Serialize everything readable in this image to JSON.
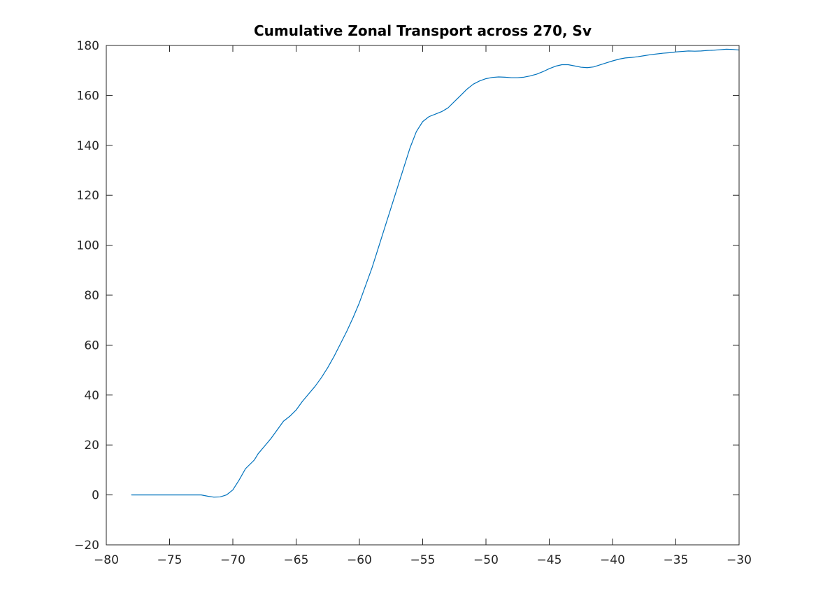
{
  "chart_data": {
    "type": "line",
    "title": "Cumulative Zonal Transport across 270, Sv",
    "xlabel": "",
    "ylabel": "",
    "xlim": [
      -80,
      -30
    ],
    "ylim": [
      -20,
      180
    ],
    "xticks": [
      -80,
      -75,
      -70,
      -65,
      -60,
      -55,
      -50,
      -45,
      -40,
      -35,
      -30
    ],
    "yticks": [
      -20,
      0,
      20,
      40,
      60,
      80,
      100,
      120,
      140,
      160,
      180
    ],
    "grid": false,
    "colors": {
      "series": "#0072bd",
      "axes": "#262626"
    },
    "series": [
      {
        "values": [
          [
            -78,
            0
          ],
          [
            -75,
            0
          ],
          [
            -73,
            0
          ],
          [
            -72.5,
            0
          ],
          [
            -72,
            -0.5
          ],
          [
            -71.5,
            -0.9
          ],
          [
            -71,
            -0.8
          ],
          [
            -70.5,
            0
          ],
          [
            -70,
            2
          ],
          [
            -69.5,
            6
          ],
          [
            -69,
            10.5
          ],
          [
            -68.7,
            12
          ],
          [
            -68.3,
            14
          ],
          [
            -68,
            16.5
          ],
          [
            -67.5,
            19.5
          ],
          [
            -67,
            22.5
          ],
          [
            -66.5,
            26
          ],
          [
            -66,
            29.5
          ],
          [
            -65.5,
            31.5
          ],
          [
            -65,
            34
          ],
          [
            -64.5,
            37.5
          ],
          [
            -64,
            40.5
          ],
          [
            -63.5,
            43.5
          ],
          [
            -63,
            47
          ],
          [
            -62.5,
            51
          ],
          [
            -62,
            55.5
          ],
          [
            -61.5,
            60.5
          ],
          [
            -61,
            65.5
          ],
          [
            -60.5,
            71
          ],
          [
            -60,
            77
          ],
          [
            -59.5,
            84
          ],
          [
            -59,
            91
          ],
          [
            -58.5,
            99
          ],
          [
            -58,
            107
          ],
          [
            -57.5,
            115
          ],
          [
            -57,
            123
          ],
          [
            -56.5,
            131
          ],
          [
            -56,
            139
          ],
          [
            -55.5,
            145.5
          ],
          [
            -55,
            149.5
          ],
          [
            -54.5,
            151.5
          ],
          [
            -54,
            152.5
          ],
          [
            -53.5,
            153.5
          ],
          [
            -53,
            155
          ],
          [
            -52.5,
            157.5
          ],
          [
            -52,
            160
          ],
          [
            -51.5,
            162.5
          ],
          [
            -51,
            164.5
          ],
          [
            -50.5,
            165.8
          ],
          [
            -50,
            166.7
          ],
          [
            -49.5,
            167.2
          ],
          [
            -49,
            167.4
          ],
          [
            -48.5,
            167.3
          ],
          [
            -48,
            167.1
          ],
          [
            -47.5,
            167.1
          ],
          [
            -47,
            167.3
          ],
          [
            -46.5,
            167.8
          ],
          [
            -46,
            168.5
          ],
          [
            -45.5,
            169.5
          ],
          [
            -45,
            170.7
          ],
          [
            -44.5,
            171.7
          ],
          [
            -44,
            172.3
          ],
          [
            -43.5,
            172.3
          ],
          [
            -43,
            171.8
          ],
          [
            -42.5,
            171.3
          ],
          [
            -42,
            171.1
          ],
          [
            -41.5,
            171.4
          ],
          [
            -41,
            172.2
          ],
          [
            -40.5,
            173
          ],
          [
            -40,
            173.8
          ],
          [
            -39.5,
            174.5
          ],
          [
            -39,
            175
          ],
          [
            -38.5,
            175.2
          ],
          [
            -38,
            175.5
          ],
          [
            -37.5,
            175.9
          ],
          [
            -37,
            176.3
          ],
          [
            -36.5,
            176.6
          ],
          [
            -36,
            176.9
          ],
          [
            -35.5,
            177.1
          ],
          [
            -35,
            177.4
          ],
          [
            -34.5,
            177.6
          ],
          [
            -34,
            177.8
          ],
          [
            -33.5,
            177.7
          ],
          [
            -33,
            177.8
          ],
          [
            -32.5,
            178
          ],
          [
            -32,
            178.1
          ],
          [
            -31.5,
            178.3
          ],
          [
            -31,
            178.5
          ],
          [
            -30.5,
            178.4
          ],
          [
            -30,
            178.2
          ]
        ]
      }
    ]
  }
}
